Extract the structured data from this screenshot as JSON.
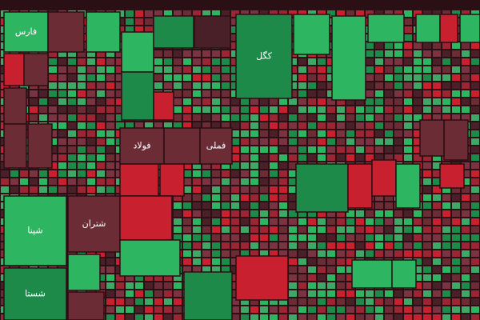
{
  "tiles": [
    {
      "label": "فارس"
    },
    {
      "label": "کگل"
    },
    {
      "label": "شپنا"
    },
    {
      "label": "شتران"
    },
    {
      "label": "فولاد"
    },
    {
      "label": "فملی"
    },
    {
      "label": "شستا"
    }
  ]
}
